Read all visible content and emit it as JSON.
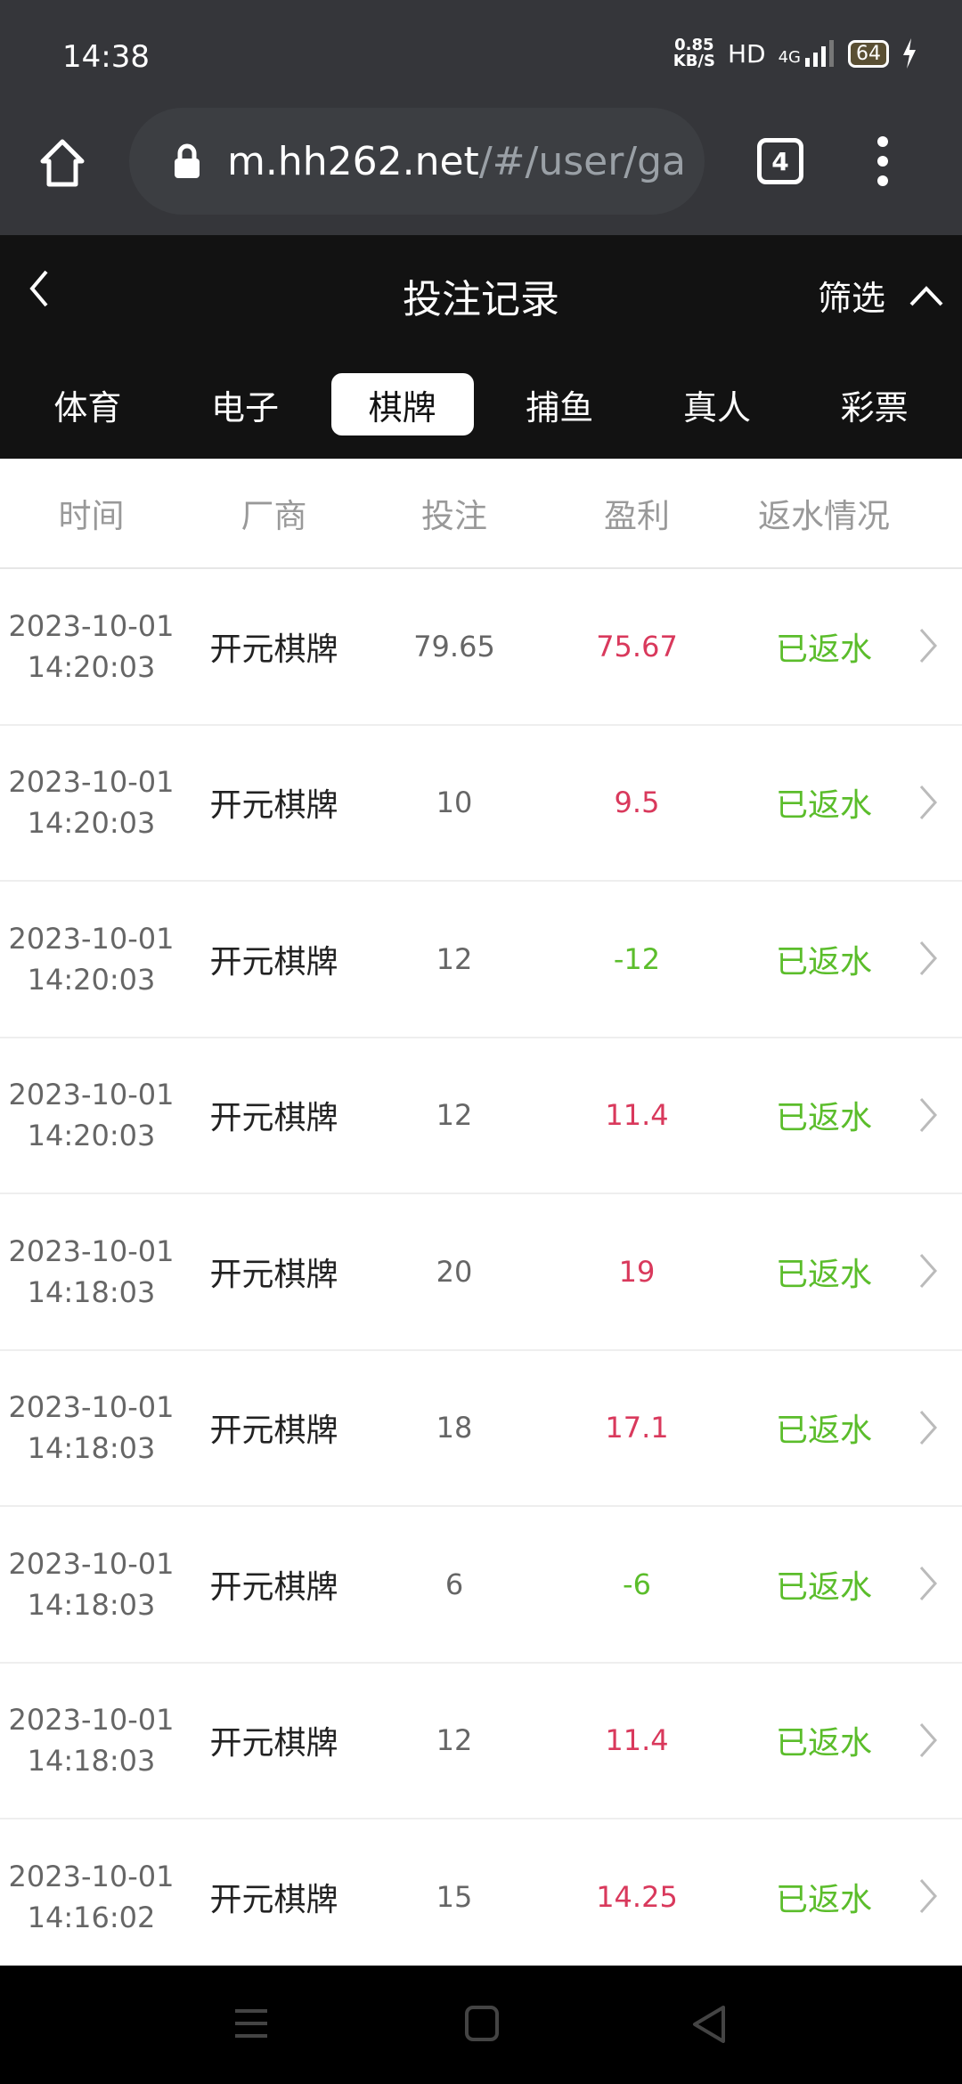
{
  "status": {
    "time": "14:38",
    "speed": "0.85",
    "speed_unit": "KB/S",
    "hd": "HD",
    "network": "4G",
    "battery": "64"
  },
  "browser": {
    "url_host": "m.hh262.net",
    "url_path": "/#/user/ga",
    "tab_count": "4"
  },
  "header": {
    "title": "投注记录",
    "filter_label": "筛选"
  },
  "categories": [
    {
      "label": "体育"
    },
    {
      "label": "电子"
    },
    {
      "label": "棋牌",
      "active": true
    },
    {
      "label": "捕鱼"
    },
    {
      "label": "真人"
    },
    {
      "label": "彩票"
    }
  ],
  "columns": [
    "时间",
    "厂商",
    "投注",
    "盈利",
    "返水情况"
  ],
  "colors": {
    "profit_positive": "#d9395c",
    "profit_negative": "#5bbd2b",
    "rebate": "#5bbd2b"
  },
  "rows": [
    {
      "date": "2023-10-01",
      "time": "14:20:03",
      "vendor": "开元棋牌",
      "bet": "79.65",
      "profit": "75.67",
      "status": "已返水"
    },
    {
      "date": "2023-10-01",
      "time": "14:20:03",
      "vendor": "开元棋牌",
      "bet": "10",
      "profit": "9.5",
      "status": "已返水"
    },
    {
      "date": "2023-10-01",
      "time": "14:20:03",
      "vendor": "开元棋牌",
      "bet": "12",
      "profit": "-12",
      "status": "已返水"
    },
    {
      "date": "2023-10-01",
      "time": "14:20:03",
      "vendor": "开元棋牌",
      "bet": "12",
      "profit": "11.4",
      "status": "已返水"
    },
    {
      "date": "2023-10-01",
      "time": "14:18:03",
      "vendor": "开元棋牌",
      "bet": "20",
      "profit": "19",
      "status": "已返水"
    },
    {
      "date": "2023-10-01",
      "time": "14:18:03",
      "vendor": "开元棋牌",
      "bet": "18",
      "profit": "17.1",
      "status": "已返水"
    },
    {
      "date": "2023-10-01",
      "time": "14:18:03",
      "vendor": "开元棋牌",
      "bet": "6",
      "profit": "-6",
      "status": "已返水"
    },
    {
      "date": "2023-10-01",
      "time": "14:18:03",
      "vendor": "开元棋牌",
      "bet": "12",
      "profit": "11.4",
      "status": "已返水"
    },
    {
      "date": "2023-10-01",
      "time": "14:16:02",
      "vendor": "开元棋牌",
      "bet": "15",
      "profit": "14.25",
      "status": "已返水"
    }
  ]
}
